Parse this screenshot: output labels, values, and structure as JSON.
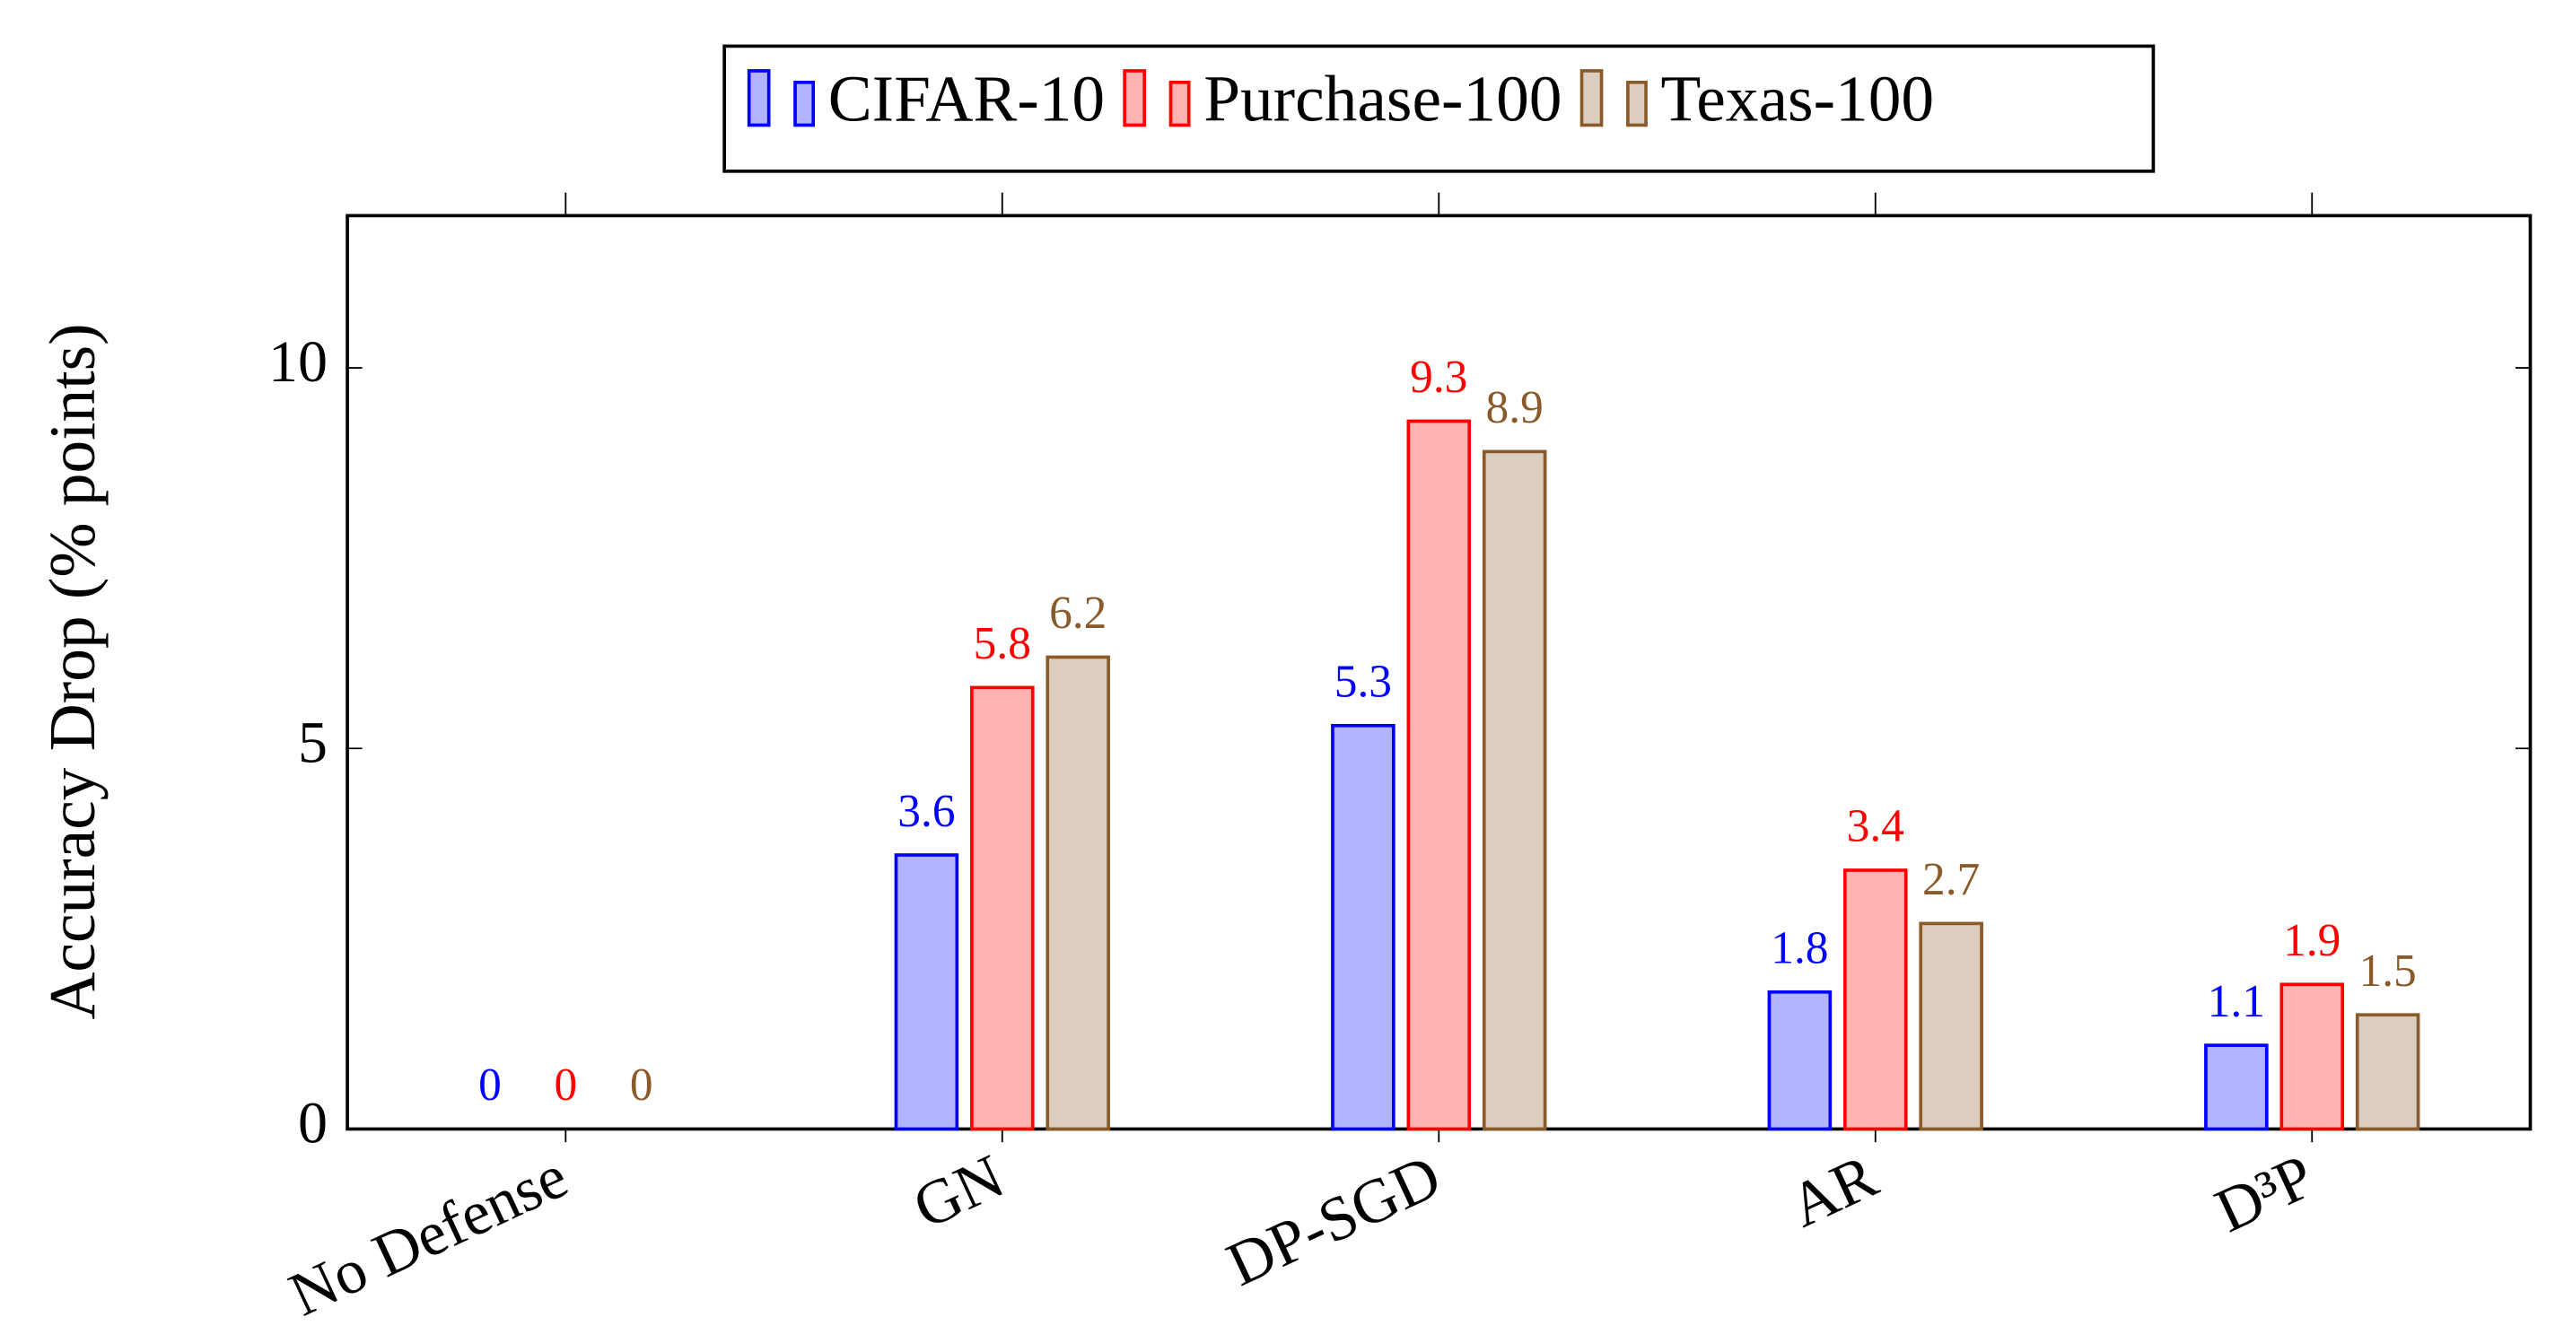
{
  "chart_data": {
    "type": "bar",
    "y_label": "Accuracy Drop (% points)",
    "categories": [
      "No Defense",
      "GN",
      "DP-SGD",
      "AR",
      "D³P"
    ],
    "series": [
      {
        "name": "CIFAR-10",
        "color": "#0000ff",
        "values": [
          0,
          3.6,
          5.3,
          1.8,
          1.1
        ]
      },
      {
        "name": "Purchase-100",
        "color": "#ff0000",
        "values": [
          0,
          5.8,
          9.3,
          3.4,
          1.9
        ]
      },
      {
        "name": "Texas-100",
        "color": "#8b5a2b",
        "values": [
          0,
          6.2,
          8.9,
          2.7,
          1.5
        ]
      }
    ],
    "ylim": [
      0,
      12
    ],
    "yticks": [
      0,
      5,
      10
    ],
    "grid": false,
    "legend": "top"
  }
}
